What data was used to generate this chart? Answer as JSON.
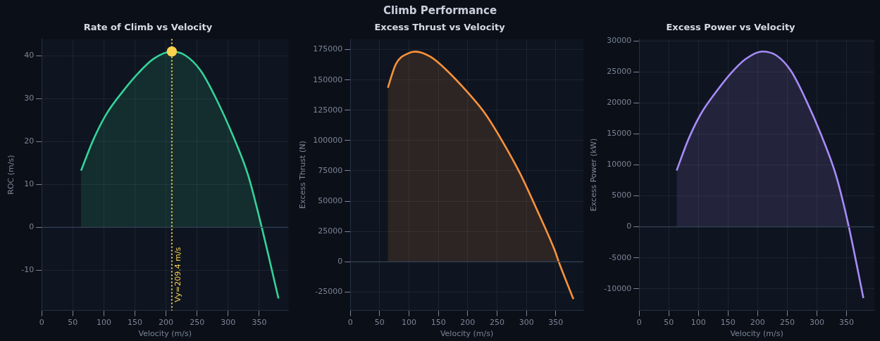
{
  "chart_data": [
    {
      "type": "other",
      "title": "Climb Performance"
    },
    {
      "type": "area",
      "title": "Rate of Climb vs Velocity",
      "xlabel": "Velocity (m/s)",
      "ylabel": "ROC (m/s)",
      "xlim": [
        0,
        397
      ],
      "xticks": [
        0,
        50,
        100,
        150,
        200,
        250,
        300,
        350
      ],
      "ylim": [
        -19.4,
        43.9
      ],
      "yticks": [
        -10,
        0,
        10,
        20,
        30,
        40
      ],
      "grid": true,
      "series": [
        {
          "type": "area",
          "color": "#34d399",
          "marker": "none",
          "x": [
            63.3,
            83,
            104,
            130,
            155,
            180,
            209.4,
            231,
            256,
            281,
            307,
            332,
            353,
            381
          ],
          "values": [
            13.2,
            20.4,
            26.4,
            31.6,
            35.9,
            39.3,
            41,
            40.1,
            36.5,
            29.9,
            21.6,
            12.2,
            0.6,
            -16.6
          ]
        },
        {
          "type": "scatter",
          "color": "#fcd34d",
          "marker": "circle",
          "x": [
            209.4
          ],
          "values": [
            41
          ]
        }
      ],
      "ref_lines": [
        {
          "axis": "y",
          "value": 0,
          "color": "#334155",
          "line_style": "solid"
        },
        {
          "axis": "x",
          "value": 209.4,
          "label": "Vy=209.4 m/s",
          "color": "#fcd34d",
          "line_style": "dotted"
        }
      ]
    },
    {
      "type": "area",
      "title": "Excess Thrust vs Velocity",
      "xlabel": "Velocity (m/s)",
      "ylabel": "Excess Thrust (N)",
      "xlim": [
        0,
        397
      ],
      "xticks": [
        0,
        50,
        100,
        150,
        200,
        250,
        300,
        350
      ],
      "ylim": [
        -40200,
        183700
      ],
      "yticks": [
        -25000,
        0,
        25000,
        50000,
        75000,
        100000,
        125000,
        150000,
        175000
      ],
      "grid": true,
      "series": [
        {
          "type": "area",
          "color": "#fb923c",
          "marker": "none",
          "x": [
            64,
            77.5,
            98.7,
            111,
            137,
            162,
            200,
            230,
            260,
            289,
            319,
            349,
            355,
            380
          ],
          "values": [
            143600,
            163000,
            172000,
            173400,
            169000,
            159000,
            139700,
            122000,
            98600,
            73000,
            41700,
            8400,
            0,
            -30800
          ]
        }
      ],
      "ref_lines": [
        {
          "axis": "y",
          "value": 0,
          "color": "#334155",
          "line_style": "solid"
        }
      ]
    },
    {
      "type": "area",
      "title": "Excess Power vs Velocity",
      "xlabel": "Velocity (m/s)",
      "ylabel": "Excess Power (kW)",
      "xlim": [
        0,
        397
      ],
      "xticks": [
        0,
        50,
        100,
        150,
        200,
        250,
        300,
        350
      ],
      "ylim": [
        -13500,
        30300
      ],
      "yticks": [
        -10000,
        -5000,
        0,
        5000,
        10000,
        15000,
        20000,
        25000,
        30000
      ],
      "grid": true,
      "series": [
        {
          "type": "area",
          "color": "#a78bfa",
          "marker": "none",
          "x": [
            63.3,
            83,
            104,
            130,
            155,
            180,
            207.6,
            231,
            256,
            281,
            307,
            332,
            353,
            378.5
          ],
          "values": [
            9100,
            14100,
            18200,
            21800,
            24800,
            27100,
            28300,
            27700,
            25200,
            20600,
            14900,
            8400,
            400,
            -11500
          ]
        }
      ],
      "ref_lines": [
        {
          "axis": "y",
          "value": 0,
          "color": "#334155",
          "line_style": "solid"
        }
      ]
    }
  ]
}
